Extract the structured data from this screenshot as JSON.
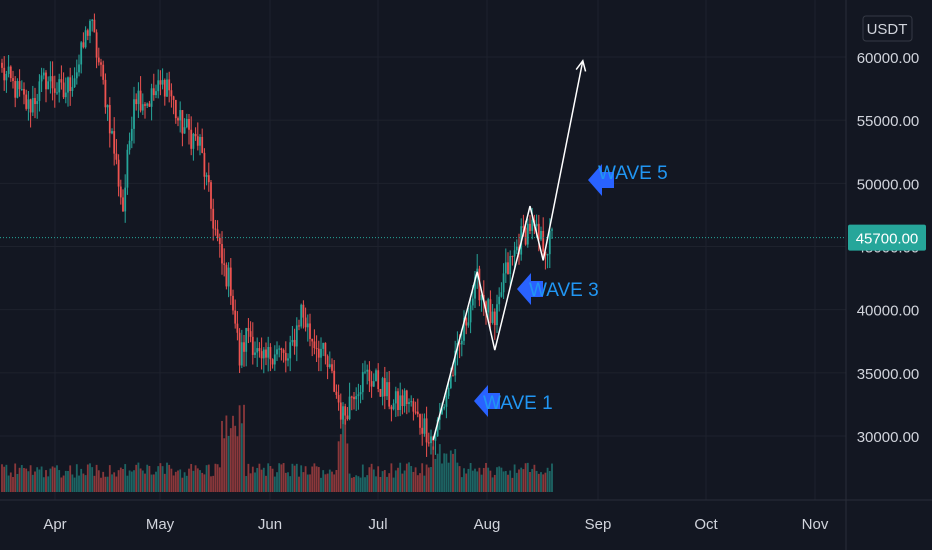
{
  "header": {
    "currency_label": "USDT"
  },
  "price_scale": {
    "ticks": [
      "60000.00",
      "55000.00",
      "50000.00",
      "45000.00",
      "40000.00",
      "35000.00",
      "30000.00"
    ],
    "ticks_values": [
      60000,
      55000,
      50000,
      45000,
      40000,
      35000,
      30000
    ],
    "current_price_label": "45700.00",
    "current_price": 45700
  },
  "time_scale": {
    "ticks": [
      "Apr",
      "May",
      "Jun",
      "Jul",
      "Aug",
      "Sep",
      "Oct",
      "Nov"
    ]
  },
  "annotations": {
    "wave1": "WAVE 1",
    "wave3": "WAVE 3",
    "wave5": "WAVE 5"
  },
  "colors": {
    "background": "#131722",
    "up": "#26a69a",
    "down": "#ef5350",
    "arrow": "#2962ff",
    "text": "#d1d4dc",
    "wave_text": "#2196f3"
  },
  "chart_data": {
    "type": "candlestick",
    "ylim": [
      26500,
      63500
    ],
    "x_ticks": [
      "Apr",
      "May",
      "Jun",
      "Jul",
      "Aug",
      "Sep",
      "Oct",
      "Nov"
    ],
    "anchors": [
      [
        0,
        58800
      ],
      [
        6,
        57500
      ],
      [
        12,
        56000
      ],
      [
        20,
        58300
      ],
      [
        28,
        57000
      ],
      [
        35,
        59400
      ],
      [
        40,
        63000
      ],
      [
        48,
        56000
      ],
      [
        55,
        48000
      ],
      [
        60,
        57200
      ],
      [
        66,
        56500
      ],
      [
        75,
        58100
      ],
      [
        80,
        55000
      ],
      [
        90,
        53000
      ],
      [
        95,
        48000
      ],
      [
        100,
        43500
      ],
      [
        104,
        42000
      ],
      [
        108,
        36000
      ],
      [
        112,
        38500
      ],
      [
        118,
        35500
      ],
      [
        124,
        37000
      ],
      [
        130,
        35800
      ],
      [
        136,
        40000
      ],
      [
        140,
        38000
      ],
      [
        145,
        36800
      ],
      [
        150,
        34500
      ],
      [
        155,
        31500
      ],
      [
        160,
        33800
      ],
      [
        166,
        34800
      ],
      [
        172,
        34000
      ],
      [
        178,
        32400
      ],
      [
        184,
        33000
      ],
      [
        188,
        31500
      ],
      [
        192,
        30800
      ],
      [
        196,
        29700
      ],
      [
        200,
        32000
      ],
      [
        204,
        34600
      ],
      [
        208,
        37000
      ],
      [
        212,
        40000
      ],
      [
        216,
        42200
      ],
      [
        220,
        40500
      ],
      [
        224,
        38300
      ],
      [
        228,
        42500
      ],
      [
        232,
        44000
      ],
      [
        236,
        45700
      ],
      [
        240,
        46700
      ],
      [
        244,
        45500
      ],
      [
        248,
        45000
      ],
      [
        250,
        45700
      ]
    ],
    "wave_path": [
      [
        196,
        29700
      ],
      [
        216,
        43000
      ],
      [
        224,
        36800
      ],
      [
        240,
        48200
      ],
      [
        246,
        43900
      ],
      [
        264,
        59700
      ]
    ],
    "labels": [
      "WAVE 1",
      "WAVE 3",
      "WAVE 5"
    ]
  }
}
